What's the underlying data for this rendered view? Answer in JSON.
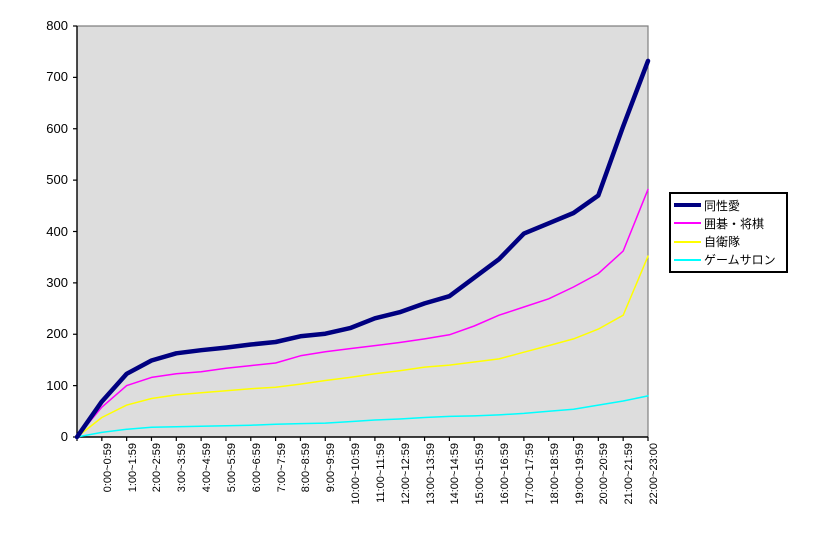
{
  "chart_data": {
    "type": "line",
    "title": "",
    "xlabel": "",
    "ylabel": "",
    "ylim": [
      0,
      800
    ],
    "y_ticks": [
      "0",
      "100",
      "200",
      "300",
      "400",
      "500",
      "600",
      "700",
      "800"
    ],
    "grid": false,
    "legend_position": "right",
    "plot_bg": "#DDDDDD",
    "plot_border_color": "#808080",
    "axis_color": "#000000",
    "x_note": "24 points per series; point 0 is the unlabeled origin (value 0), points 1-23 align with the hour-interval labels",
    "x_tick_labels": [
      "0:00~0:59",
      "1:00~1:59",
      "2:00~2:59",
      "3:00~3:59",
      "4:00~4:59",
      "5:00~5:59",
      "6:00~6:59",
      "7:00~7:59",
      "8:00~8:59",
      "9:00~9:59",
      "10:00~10:59",
      "11:00~11:59",
      "12:00~12:59",
      "13:00~13:59",
      "14:00~14:59",
      "15:00~15:59",
      "16:00~16:59",
      "17:00~17:59",
      "18:00~18:59",
      "19:00~19:59",
      "20:00~20:59",
      "21:00~21:59",
      "22:00~23:00"
    ],
    "series": [
      {
        "name": "同性愛",
        "color": "#000080",
        "line_width": 4.5,
        "values": [
          0,
          69,
          123,
          149,
          163,
          169,
          174,
          180,
          185,
          196,
          201,
          212,
          231,
          243,
          260,
          274,
          310,
          346,
          396,
          416,
          436,
          470,
          605,
          732
        ]
      },
      {
        "name": "囲碁・将棋",
        "color": "#FF00FF",
        "line_width": 1.5,
        "values": [
          0,
          58,
          100,
          116,
          123,
          127,
          134,
          139,
          144,
          158,
          166,
          172,
          178,
          184,
          191,
          199,
          216,
          237,
          253,
          269,
          292,
          318,
          362,
          482
        ]
      },
      {
        "name": "自衛隊",
        "color": "#FFFF00",
        "line_width": 1.5,
        "values": [
          0,
          38,
          62,
          75,
          82,
          86,
          90,
          94,
          97,
          103,
          110,
          116,
          123,
          129,
          136,
          140,
          146,
          152,
          165,
          178,
          191,
          210,
          237,
          352
        ]
      },
      {
        "name": "ゲームサロン",
        "color": "#00FFFF",
        "line_width": 1.5,
        "values": [
          0,
          9,
          15,
          19,
          20,
          21,
          22,
          23,
          25,
          26,
          27,
          30,
          33,
          35,
          38,
          40,
          41,
          43,
          46,
          50,
          54,
          62,
          70,
          80
        ]
      }
    ]
  }
}
